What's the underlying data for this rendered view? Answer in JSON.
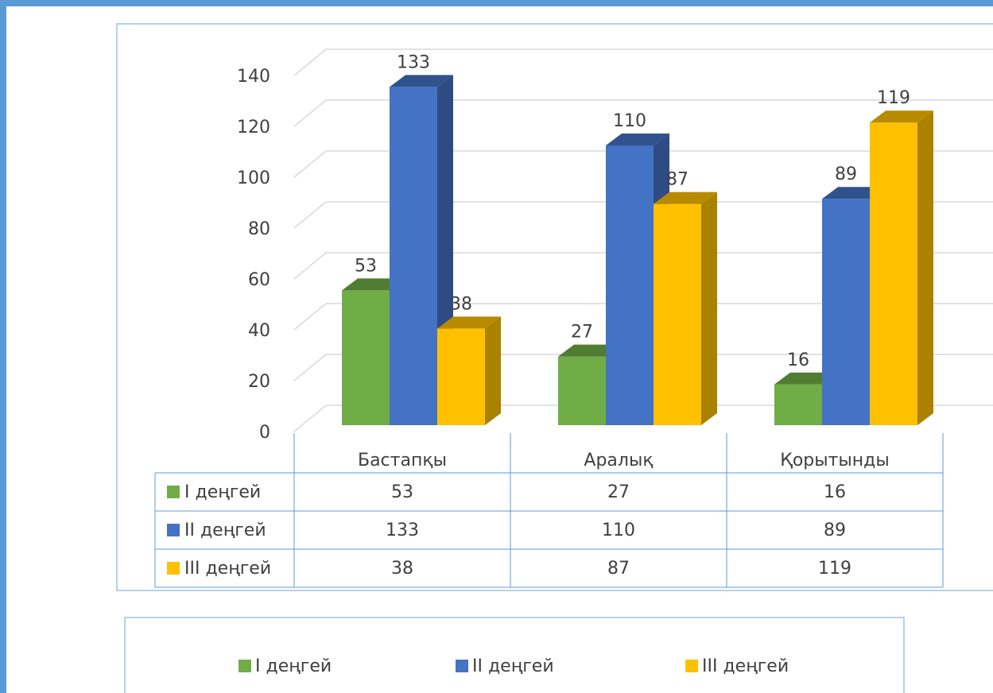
{
  "chart_data": {
    "type": "bar3d",
    "categories": [
      "Бастапқы",
      "Аралық",
      "Қорытынды"
    ],
    "series": [
      {
        "name": "I деңгей",
        "color": "#70ad47",
        "values": [
          53,
          27,
          16
        ]
      },
      {
        "name": "II деңгей",
        "color": "#4472c4",
        "values": [
          133,
          110,
          89
        ]
      },
      {
        "name": "III деңгей",
        "color": "#ffc000",
        "values": [
          38,
          87,
          119
        ]
      }
    ],
    "ylim": [
      0,
      140
    ],
    "yticks": [
      0,
      20,
      40,
      60,
      80,
      100,
      120,
      140
    ],
    "grid": true,
    "data_table": true,
    "legend": "bottom"
  }
}
